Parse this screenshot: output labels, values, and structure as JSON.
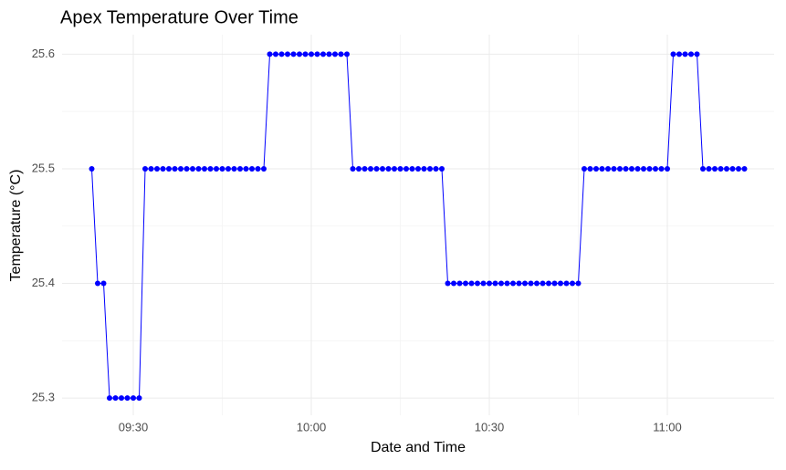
{
  "chart_data": {
    "type": "line",
    "title": "Apex Temperature Over Time",
    "x_label": "Date and Time",
    "y_label": "Temperature (°C)",
    "color": "#0000ff",
    "grid": true,
    "x": [
      "09:23",
      "09:24",
      "09:25",
      "09:26",
      "09:27",
      "09:28",
      "09:29",
      "09:30",
      "09:31",
      "09:32",
      "09:33",
      "09:34",
      "09:35",
      "09:36",
      "09:37",
      "09:38",
      "09:39",
      "09:40",
      "09:41",
      "09:42",
      "09:43",
      "09:44",
      "09:45",
      "09:46",
      "09:47",
      "09:48",
      "09:49",
      "09:50",
      "09:51",
      "09:52",
      "09:53",
      "09:54",
      "09:55",
      "09:56",
      "09:57",
      "09:58",
      "09:59",
      "10:00",
      "10:01",
      "10:02",
      "10:03",
      "10:04",
      "10:05",
      "10:06",
      "10:07",
      "10:08",
      "10:09",
      "10:10",
      "10:11",
      "10:12",
      "10:13",
      "10:14",
      "10:15",
      "10:16",
      "10:17",
      "10:18",
      "10:19",
      "10:20",
      "10:21",
      "10:22",
      "10:23",
      "10:24",
      "10:25",
      "10:26",
      "10:27",
      "10:28",
      "10:29",
      "10:30",
      "10:31",
      "10:32",
      "10:33",
      "10:34",
      "10:35",
      "10:36",
      "10:37",
      "10:38",
      "10:39",
      "10:40",
      "10:41",
      "10:42",
      "10:43",
      "10:44",
      "10:45",
      "10:46",
      "10:47",
      "10:48",
      "10:49",
      "10:50",
      "10:51",
      "10:52",
      "10:53",
      "10:54",
      "10:55",
      "10:56",
      "10:57",
      "10:58",
      "10:59",
      "11:00",
      "11:01",
      "11:02",
      "11:03",
      "11:04",
      "11:05",
      "11:06",
      "11:07",
      "11:08",
      "11:09",
      "11:10",
      "11:11",
      "11:12",
      "11:13"
    ],
    "values": [
      25.5,
      25.4,
      25.4,
      25.3,
      25.3,
      25.3,
      25.3,
      25.3,
      25.3,
      25.5,
      25.5,
      25.5,
      25.5,
      25.5,
      25.5,
      25.5,
      25.5,
      25.5,
      25.5,
      25.5,
      25.5,
      25.5,
      25.5,
      25.5,
      25.5,
      25.5,
      25.5,
      25.5,
      25.5,
      25.5,
      25.6,
      25.6,
      25.6,
      25.6,
      25.6,
      25.6,
      25.6,
      25.6,
      25.6,
      25.6,
      25.6,
      25.6,
      25.6,
      25.6,
      25.5,
      25.5,
      25.5,
      25.5,
      25.5,
      25.5,
      25.5,
      25.5,
      25.5,
      25.5,
      25.5,
      25.5,
      25.5,
      25.5,
      25.5,
      25.5,
      25.4,
      25.4,
      25.4,
      25.4,
      25.4,
      25.4,
      25.4,
      25.4,
      25.4,
      25.4,
      25.4,
      25.4,
      25.4,
      25.4,
      25.4,
      25.4,
      25.4,
      25.4,
      25.4,
      25.4,
      25.4,
      25.4,
      25.4,
      25.5,
      25.5,
      25.5,
      25.5,
      25.5,
      25.5,
      25.5,
      25.5,
      25.5,
      25.5,
      25.5,
      25.5,
      25.5,
      25.5,
      25.5,
      25.6,
      25.6,
      25.6,
      25.6,
      25.6,
      25.5,
      25.5,
      25.5,
      25.5,
      25.5,
      25.5,
      25.5,
      25.5
    ],
    "xlim": [
      "09:18",
      "11:18"
    ],
    "xticks": [
      "09:30",
      "10:00",
      "10:30",
      "11:00"
    ],
    "ylim": [
      25.285,
      25.617
    ],
    "yticks": [
      25.3,
      25.4,
      25.5,
      25.6
    ]
  }
}
